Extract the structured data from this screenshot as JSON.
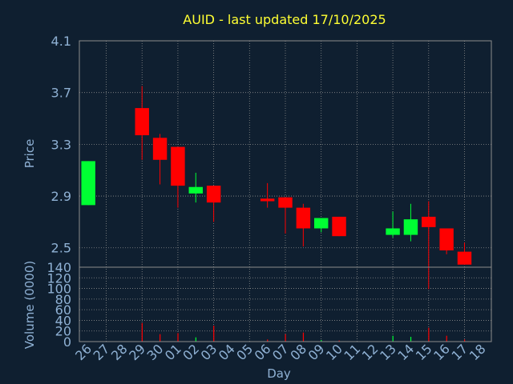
{
  "chart_data": {
    "type": "candlestick",
    "title": "AUID - last updated 17/10/2025",
    "xlabel": "Day",
    "price_panel": {
      "ylabel": "Price",
      "ylim": [
        2.35,
        4.1
      ],
      "yticks": [
        2.5,
        2.9,
        3.3,
        3.7,
        4.1
      ],
      "ytick_labels": [
        "2.5",
        "2.9",
        "3.3",
        "3.7",
        "4.1"
      ],
      "grid": true
    },
    "volume_panel": {
      "ylabel": "Volume (0000)",
      "ylim": [
        0,
        140
      ],
      "yticks": [
        0,
        20,
        40,
        60,
        80,
        100,
        120,
        140
      ],
      "ytick_labels": [
        "0",
        "20",
        "40",
        "60",
        "80",
        "100",
        "120",
        "140"
      ],
      "grid": true
    },
    "x_tick_labels": [
      "26",
      "27",
      "28",
      "29",
      "30",
      "01",
      "02",
      "03",
      "04",
      "05",
      "06",
      "07",
      "08",
      "09",
      "10",
      "11",
      "12",
      "13",
      "14",
      "15",
      "16",
      "17",
      "18"
    ],
    "candles": [
      {
        "day": "26",
        "open": 2.83,
        "close": 3.17,
        "high": 3.17,
        "low": 2.83,
        "volume": 0
      },
      {
        "day": "29",
        "open": 3.58,
        "close": 3.37,
        "high": 3.75,
        "low": 3.18,
        "volume": 35
      },
      {
        "day": "30",
        "open": 3.35,
        "close": 3.18,
        "high": 3.38,
        "low": 2.99,
        "volume": 14
      },
      {
        "day": "01",
        "open": 3.28,
        "close": 2.98,
        "high": 3.28,
        "low": 2.81,
        "volume": 16
      },
      {
        "day": "02",
        "open": 2.92,
        "close": 2.97,
        "high": 3.08,
        "low": 2.85,
        "volume": 8
      },
      {
        "day": "03",
        "open": 2.98,
        "close": 2.85,
        "high": 2.98,
        "low": 2.7,
        "volume": 30
      },
      {
        "day": "06",
        "open": 2.88,
        "close": 2.86,
        "high": 3.0,
        "low": 2.81,
        "volume": 4
      },
      {
        "day": "07",
        "open": 2.89,
        "close": 2.81,
        "high": 2.89,
        "low": 2.61,
        "volume": 14
      },
      {
        "day": "08",
        "open": 2.81,
        "close": 2.65,
        "high": 2.84,
        "low": 2.51,
        "volume": 17
      },
      {
        "day": "09",
        "open": 2.65,
        "close": 2.73,
        "high": 2.73,
        "low": 2.62,
        "volume": 3
      },
      {
        "day": "10",
        "open": 2.74,
        "close": 2.59,
        "high": 2.74,
        "low": 2.59,
        "volume": 2
      },
      {
        "day": "13",
        "open": 2.6,
        "close": 2.65,
        "high": 2.78,
        "low": 2.58,
        "volume": 11
      },
      {
        "day": "14",
        "open": 2.6,
        "close": 2.72,
        "high": 2.84,
        "low": 2.55,
        "volume": 9
      },
      {
        "day": "15",
        "open": 2.74,
        "close": 2.66,
        "high": 2.86,
        "low": 2.18,
        "volume": 26
      },
      {
        "day": "16",
        "open": 2.65,
        "close": 2.48,
        "high": 2.65,
        "low": 2.45,
        "volume": 11
      },
      {
        "day": "17",
        "open": 2.47,
        "close": 2.37,
        "high": 2.54,
        "low": 2.37,
        "volume": 4
      }
    ],
    "colors": {
      "background": "#0f1f30",
      "plot_background": "#0f1f30",
      "grid": "#8c8c8c",
      "axis_text": "#8fb1d4",
      "title": "#ffff33",
      "up": "#00ff33",
      "down": "#ff0000"
    }
  }
}
